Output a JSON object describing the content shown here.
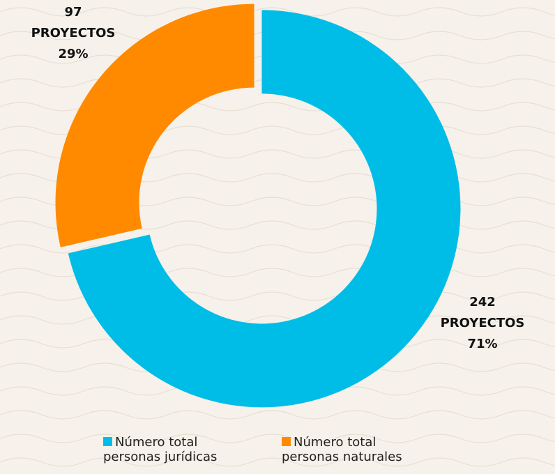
{
  "chart_data": {
    "type": "pie",
    "donut": true,
    "series": [
      {
        "name": "Número total personas jurídicas",
        "color": "#00bde8",
        "values": [
          242
        ]
      },
      {
        "name": "Número total personas naturales",
        "color": "#ff8a00",
        "values": [
          97
        ]
      }
    ],
    "unit": "PROYECTOS",
    "percentages": [
      71,
      29
    ],
    "percentage_labels": [
      "71%",
      "29%"
    ],
    "legend": "bottom"
  }
}
